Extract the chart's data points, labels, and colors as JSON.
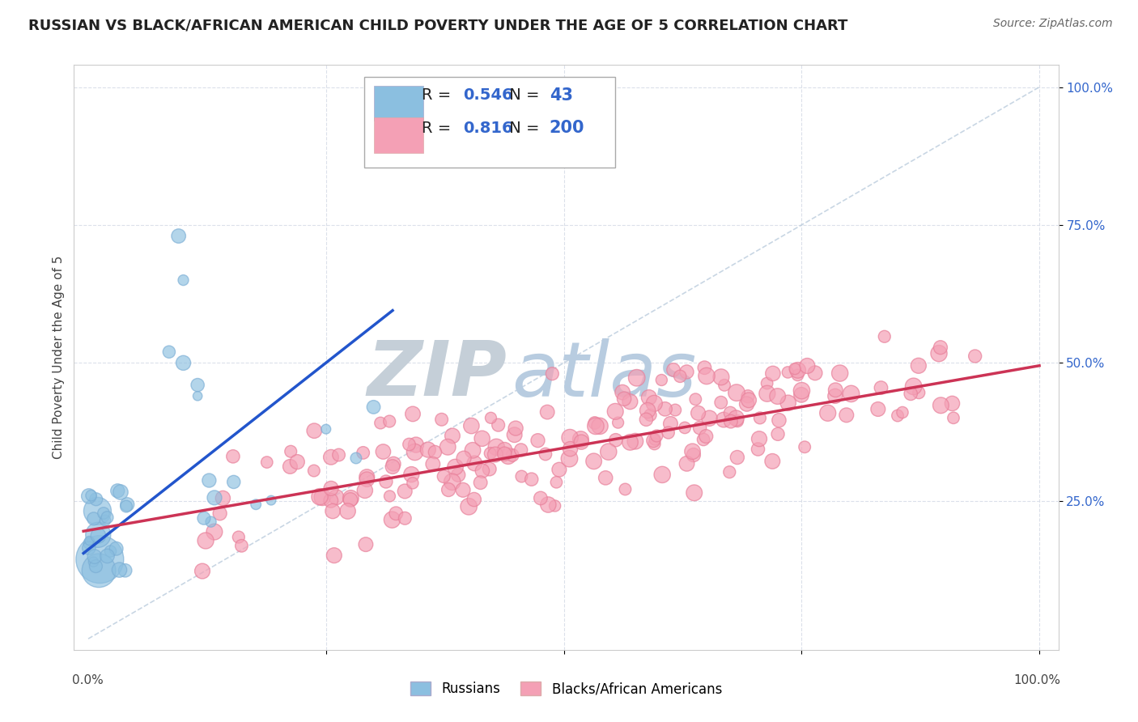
{
  "title": "RUSSIAN VS BLACK/AFRICAN AMERICAN CHILD POVERTY UNDER THE AGE OF 5 CORRELATION CHART",
  "source": "Source: ZipAtlas.com",
  "ylabel": "Child Poverty Under the Age of 5",
  "legend_entries": [
    {
      "label": "Russians",
      "color": "#a8c8f0",
      "R": "0.546",
      "N": "43"
    },
    {
      "label": "Blacks/African Americans",
      "color": "#f4a0b5",
      "R": "0.816",
      "N": "200"
    }
  ],
  "background_color": "#ffffff",
  "scatter_color_russian": "#8bbfe0",
  "scatter_edge_russian": "#7aadd4",
  "scatter_color_black": "#f4a0b5",
  "scatter_edge_black": "#e8809a",
  "line_color_russian": "#2255cc",
  "line_color_black": "#cc3355",
  "diagonal_color": "#bbccdd",
  "watermark_zip": "#c0ccd8",
  "watermark_atlas": "#b8cce0",
  "grid_color": "#d8dde8",
  "title_fontsize": 13,
  "source_fontsize": 10,
  "axis_label_fontsize": 11,
  "legend_fontsize": 14,
  "tick_color": "#3366cc",
  "R_color": "#3366cc",
  "N_color": "#3366cc"
}
